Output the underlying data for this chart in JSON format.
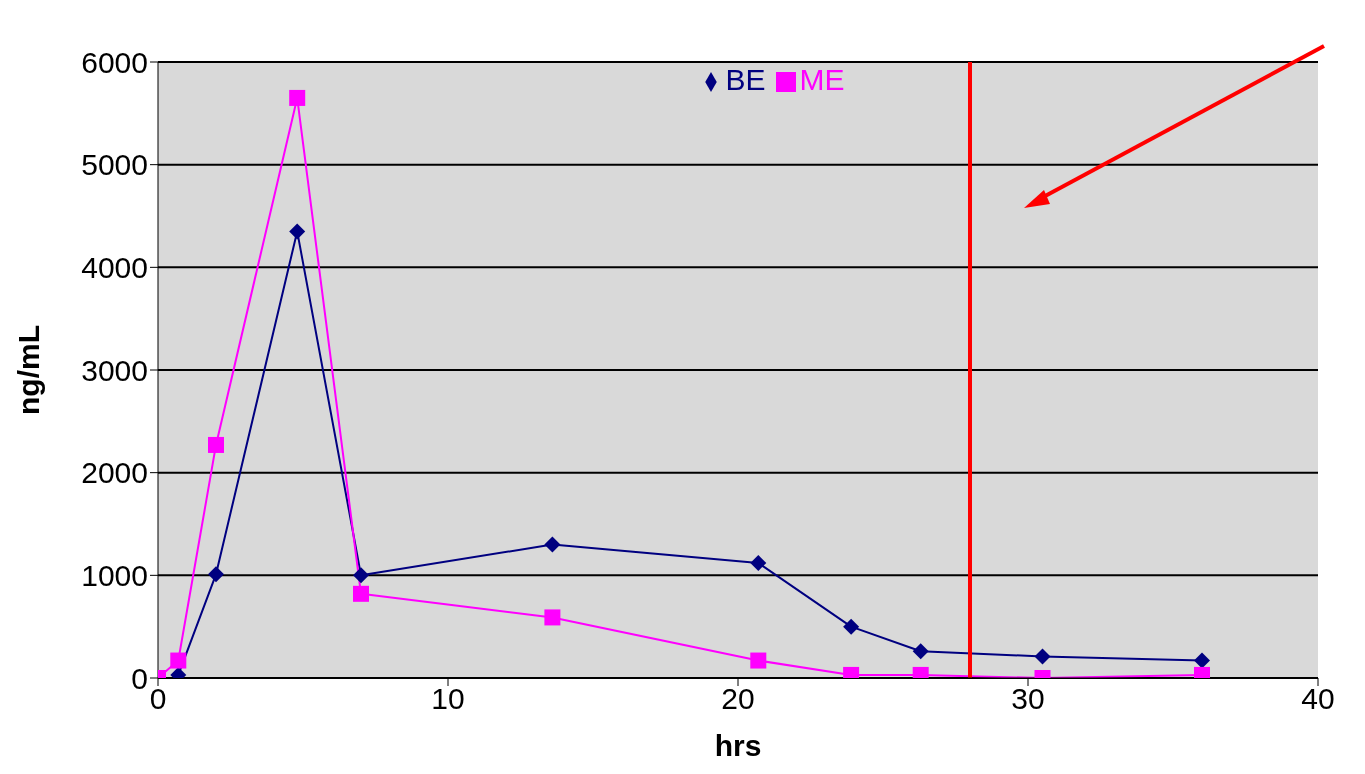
{
  "chart_data": {
    "type": "line",
    "xlabel": "hrs",
    "ylabel": "ng/mL",
    "xlim": [
      0,
      40
    ],
    "xticks": [
      0,
      10,
      20,
      30,
      40
    ],
    "ylim": [
      0,
      6000
    ],
    "yticks": [
      0,
      1000,
      2000,
      3000,
      4000,
      5000,
      6000
    ],
    "grid": "y",
    "legend": "top",
    "line_style": "solid",
    "series": [
      {
        "name": "BE",
        "color": "#000080",
        "marker": "diamond",
        "x": [
          0.7,
          2,
          4.8,
          7,
          13.6,
          20.7,
          23.9,
          26.3,
          30.5,
          36
        ],
        "values": [
          30,
          1010,
          4350,
          1000,
          1300,
          1120,
          500,
          260,
          210,
          170
        ]
      },
      {
        "name": "ME",
        "color": "#ff00ff",
        "marker": "square",
        "x": [
          0,
          0.7,
          2,
          4.8,
          7,
          13.6,
          20.7,
          23.9,
          26.3,
          30.5,
          36
        ],
        "values": [
          0,
          170,
          2270,
          5650,
          820,
          590,
          170,
          30,
          30,
          0,
          30
        ]
      }
    ],
    "ref_lines": [
      {
        "axis": "x",
        "value": 28,
        "color": "#ff0000",
        "line_style": "solid"
      }
    ]
  }
}
